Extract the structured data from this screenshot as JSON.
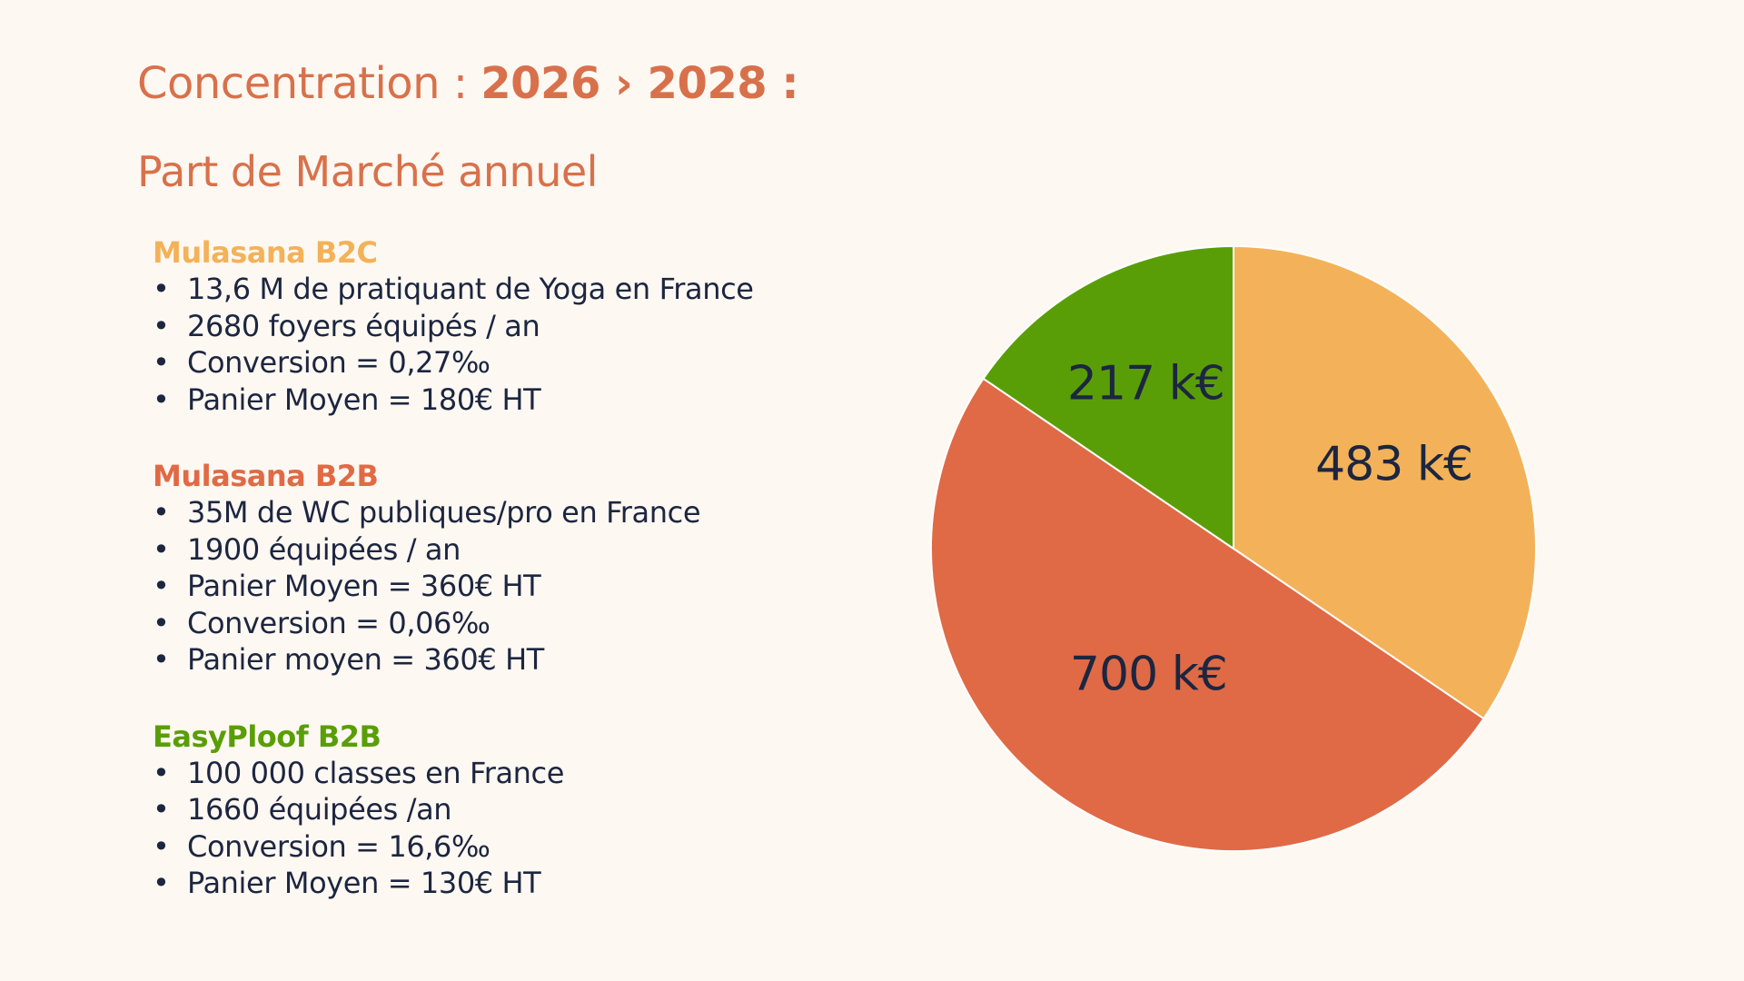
{
  "header": {
    "title_prefix": "Concentration : ",
    "title_bold": "2026 › 2028 :",
    "subtitle": "Part de Marché annuel"
  },
  "segments": [
    {
      "title": "Mulasana B2C",
      "color": "#f3b259",
      "items": [
        "13,6 M de pratiquant de Yoga en France",
        "2680 foyers équipés / an",
        "Conversion = 0,27‰",
        "Panier Moyen = 180€ HT"
      ]
    },
    {
      "title": "Mulasana B2B",
      "color": "#e06a45",
      "items": [
        "35M de WC publiques/pro en France",
        "1900 équipées / an",
        "Panier Moyen = 360€ HT",
        "Conversion = 0,06‰",
        "Panier moyen = 360€ HT"
      ]
    },
    {
      "title": "EasyPloof B2B",
      "color": "#5a9e07",
      "items": [
        "100 000 classes en France",
        "1660 équipées /an",
        "Conversion = 16,6‰",
        "Panier Moyen = 130€ HT"
      ]
    }
  ],
  "chart_data": {
    "type": "pie",
    "title": "",
    "slices": [
      {
        "label": "483 k€",
        "value": 483,
        "color": "#f3b259"
      },
      {
        "label": "700 k€",
        "value": 700,
        "color": "#e06a45"
      },
      {
        "label": "217 k€",
        "value": 217,
        "color": "#5a9e07"
      }
    ],
    "start": "12 o'clock",
    "direction": "clockwise",
    "legend": "none"
  }
}
